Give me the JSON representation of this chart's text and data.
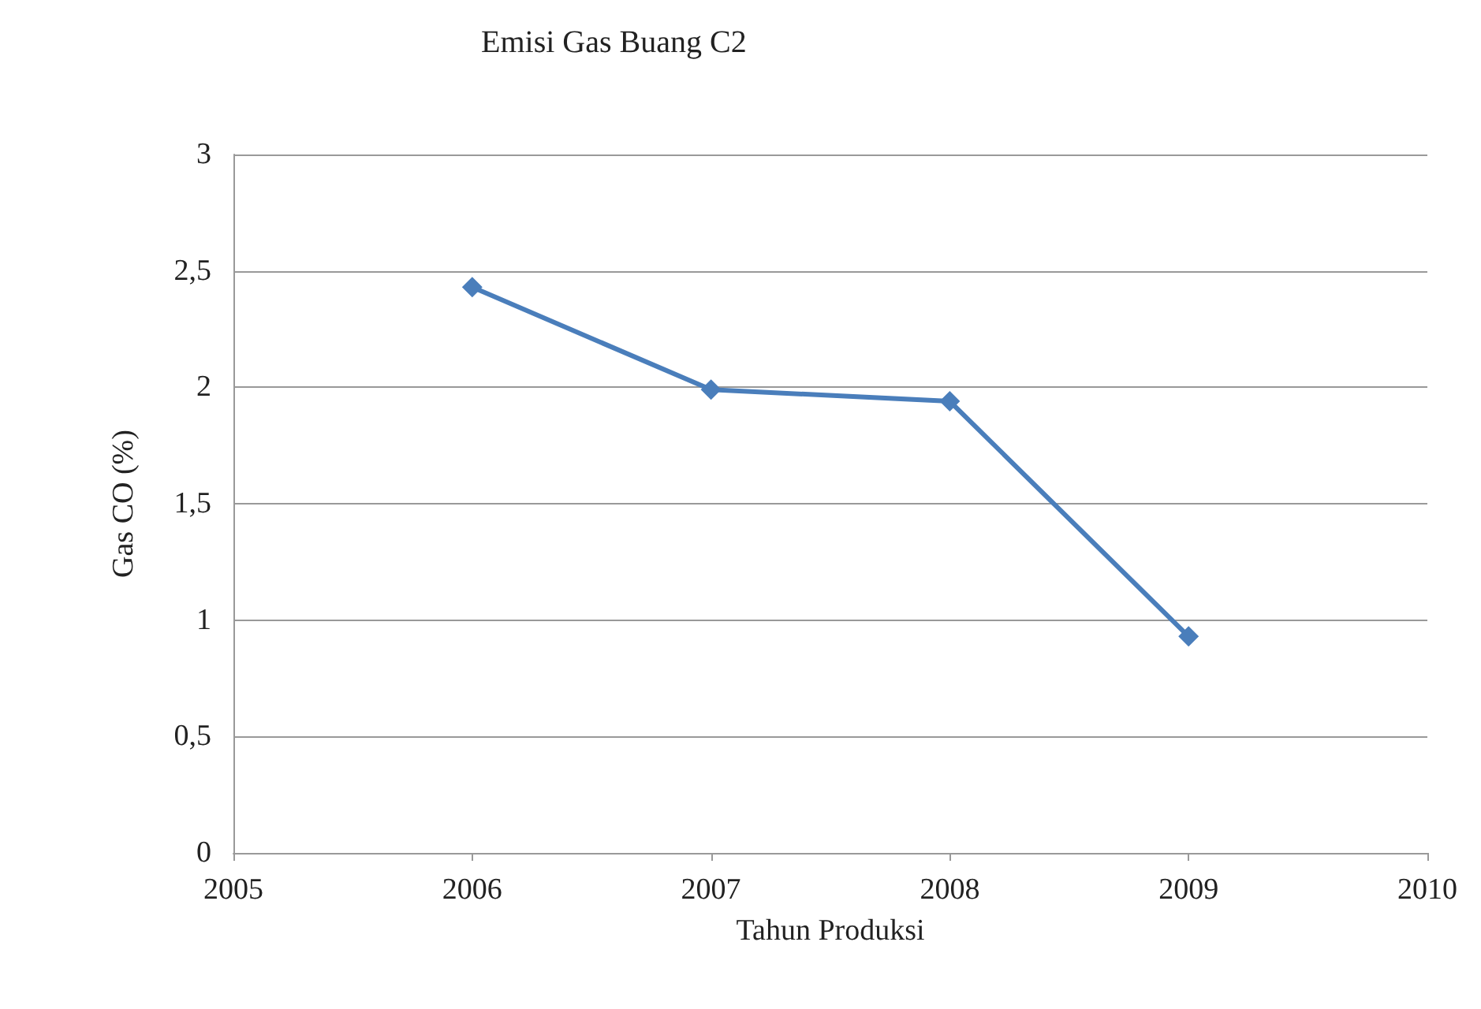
{
  "chart_data": {
    "type": "line",
    "title": "Emisi Gas Buang C2",
    "xlabel": "Tahun Produksi",
    "ylabel": "Gas CO (%)",
    "x": [
      2006,
      2007,
      2008,
      2009
    ],
    "series": [
      {
        "color": "#4a7ebb",
        "values": [
          2.43,
          1.99,
          1.94,
          0.93
        ]
      }
    ],
    "xlim": [
      2005,
      2010
    ],
    "xticks": [
      2005,
      2006,
      2007,
      2008,
      2009,
      2010
    ],
    "ylim": [
      0,
      3
    ],
    "yticks": [
      0,
      {
        "value": 0.5,
        "label": "0,5"
      },
      1,
      {
        "value": 1.5,
        "label": "1,5"
      },
      2,
      {
        "value": 2.5,
        "label": "2,5"
      },
      3
    ],
    "grid": "y",
    "marker": "diamond",
    "line_style": "solid"
  }
}
